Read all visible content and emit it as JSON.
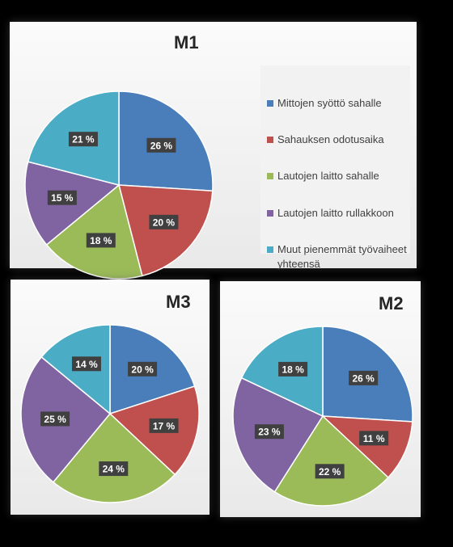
{
  "chart_data": [
    {
      "type": "pie",
      "title": "M1",
      "categories": [
        "Mittojen syöttö sahalle",
        "Sahauksen odotusaika",
        "Lautojen laitto sahalle",
        "Lautojen laitto rullakkoon",
        "Muut pienemmät työvaiheet yhteensä"
      ],
      "values": [
        26,
        20,
        18,
        15,
        21
      ],
      "labels": [
        "26 %",
        "20 %",
        "18 %",
        "15 %",
        "21 %"
      ],
      "colors": [
        "#4a7ebb",
        "#c0504d",
        "#9bbb59",
        "#8064a2",
        "#4bacc6"
      ],
      "legend": "right"
    },
    {
      "type": "pie",
      "title": "M3",
      "categories": [
        "Mittojen syöttö sahalle",
        "Sahauksen odotusaika",
        "Lautojen laitto sahalle",
        "Lautojen laitto rullakkoon",
        "Muut pienemmät työvaiheet yhteensä"
      ],
      "values": [
        20,
        17,
        24,
        25,
        14
      ],
      "labels": [
        "20 %",
        "17 %",
        "24 %",
        "25 %",
        "14 %"
      ],
      "colors": [
        "#4a7ebb",
        "#c0504d",
        "#9bbb59",
        "#8064a2",
        "#4bacc6"
      ],
      "legend": "none"
    },
    {
      "type": "pie",
      "title": "M2",
      "categories": [
        "Mittojen syöttö sahalle",
        "Sahauksen odotusaika",
        "Lautojen laitto sahalle",
        "Lautojen laitto rullakkoon",
        "Muut pienemmät työvaiheet yhteensä"
      ],
      "values": [
        26,
        11,
        22,
        23,
        18
      ],
      "labels": [
        "26 %",
        "11 %",
        "22 %",
        "23 %",
        "18 %"
      ],
      "colors": [
        "#4a7ebb",
        "#c0504d",
        "#9bbb59",
        "#8064a2",
        "#4bacc6"
      ],
      "legend": "none"
    }
  ]
}
